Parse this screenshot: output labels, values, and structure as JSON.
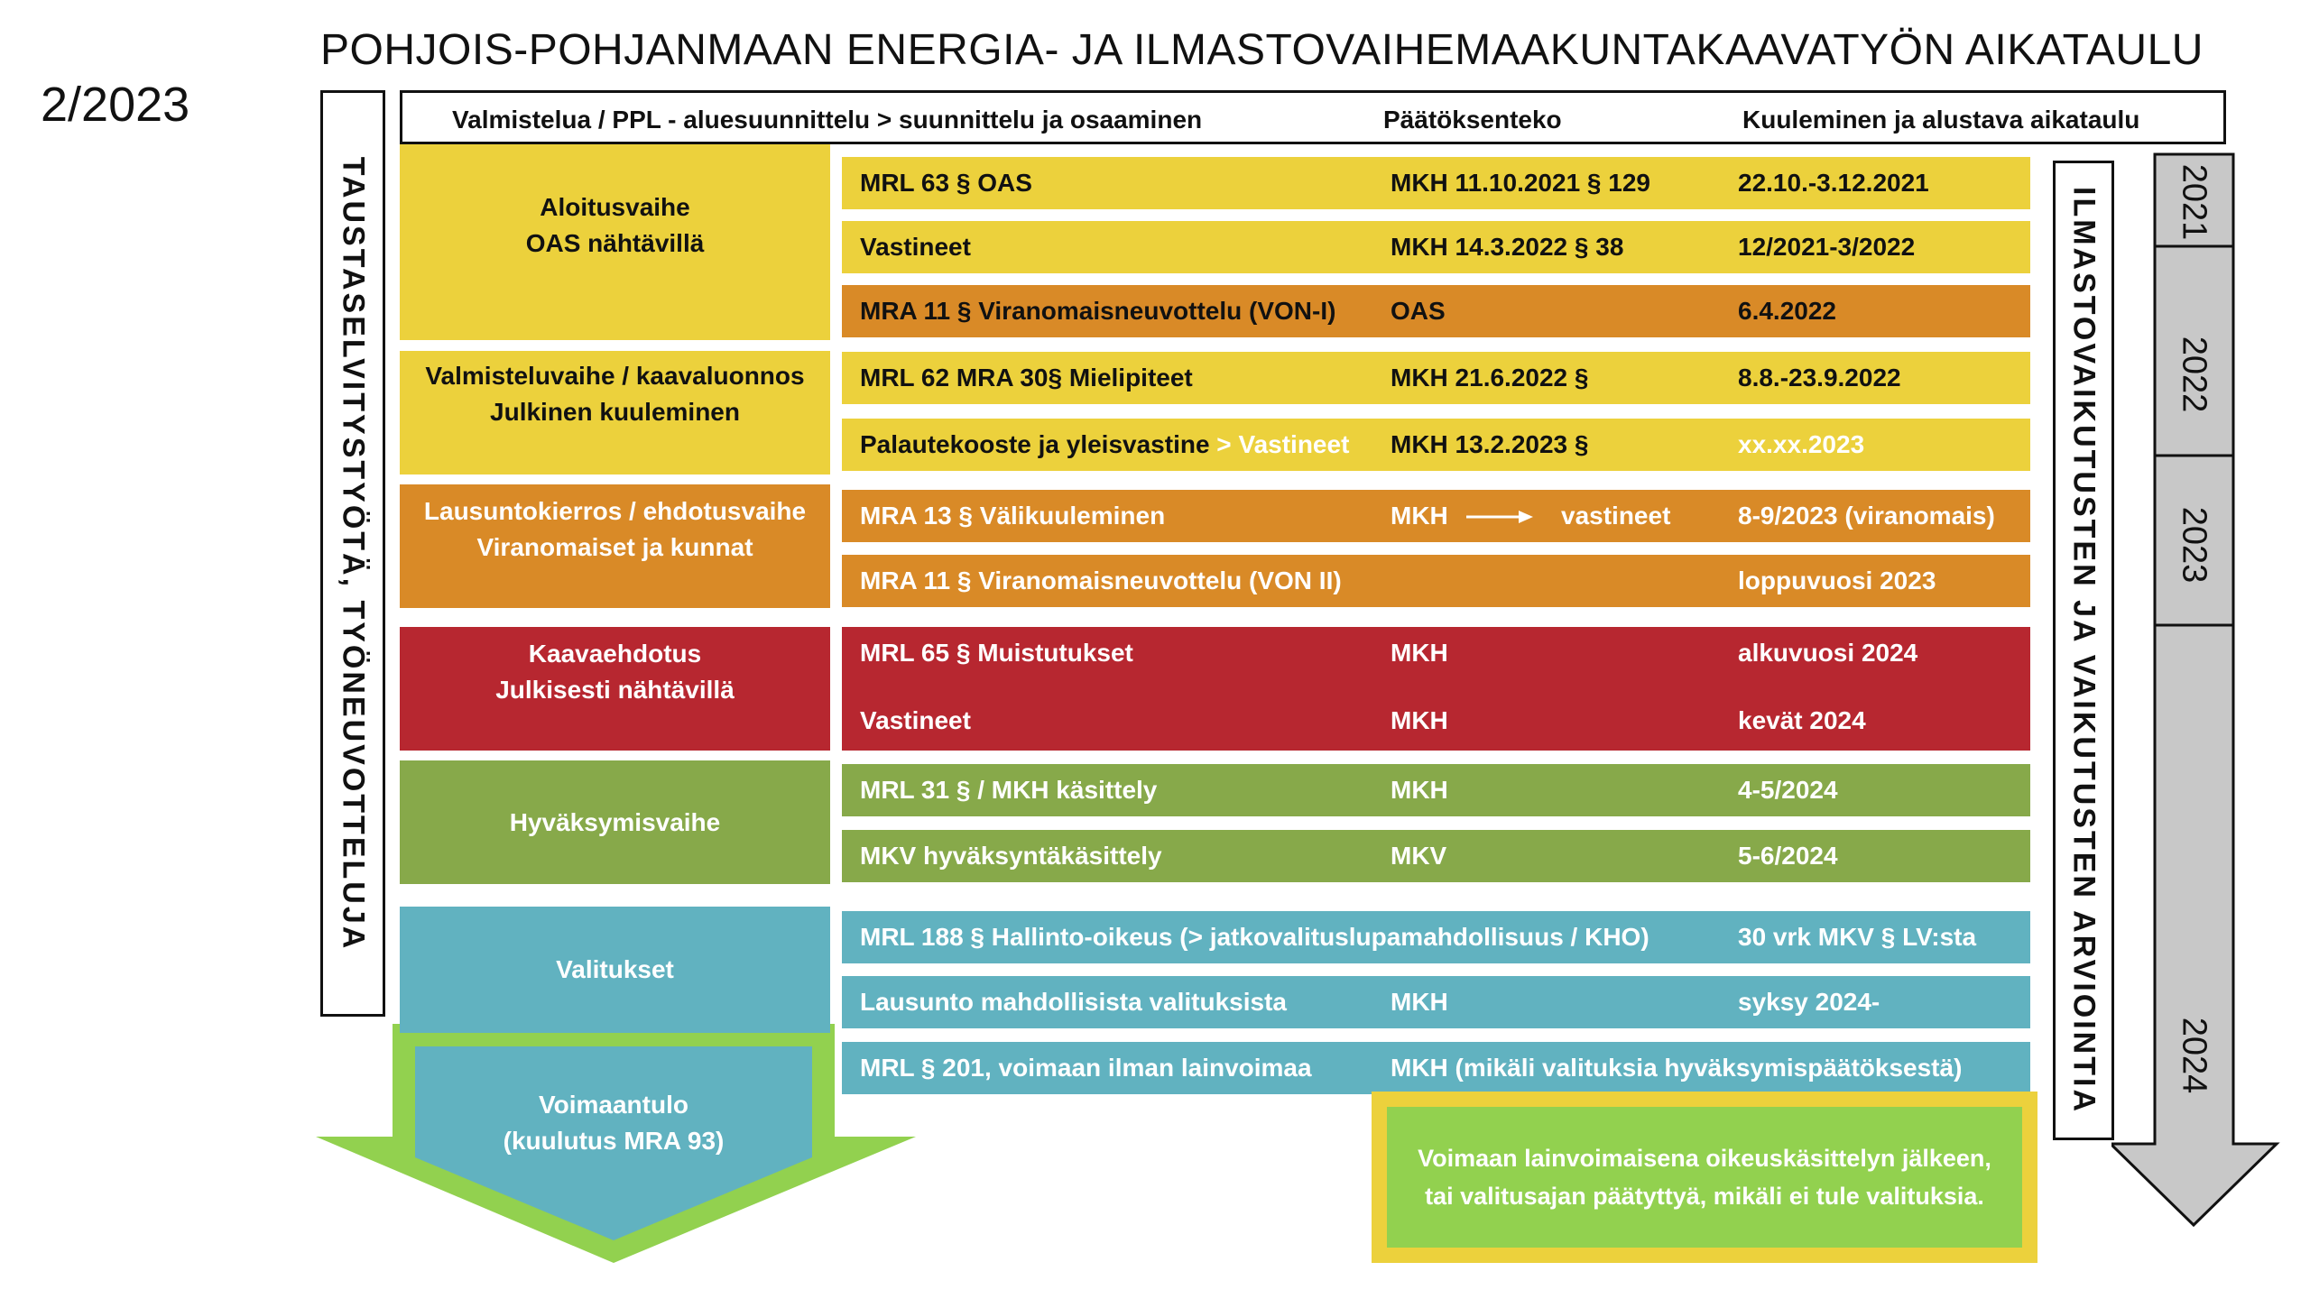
{
  "title": "POHJOIS-POHJANMAAN  ENERGIA- JA ILMASTOVAIHEMAAKUNTAKAAVATYÖN AIKATAULU",
  "date": "2/2023",
  "header": {
    "col1": "Valmistelua / PPL - aluesuunnittelu > suunnittelu ja osaaminen",
    "col2": "Päätöksenteko",
    "col3": "Kuuleminen ja alustava aikataulu"
  },
  "left_vertical": "TAUSTASELVITYSTYÖTÄ, TYÖNEUVOTTELUJA",
  "right_vertical": "ILMASTOVAIKUTUSTEN JA VAIKUTUSTEN ARVIOINTIA",
  "years": [
    "2021",
    "2022",
    "2023",
    "2024"
  ],
  "phases": {
    "aloitus": [
      "Aloitusvaihe",
      "OAS nähtävillä"
    ],
    "valmistelu": [
      "Valmisteluvaihe / kaavaluonnos",
      "Julkinen kuuleminen"
    ],
    "lausunto": [
      "Lausuntokierros / ehdotusvaihe",
      "Viranomaiset ja kunnat"
    ],
    "ehdotus": [
      "Kaavaehdotus",
      "Julkisesti nähtävillä"
    ],
    "hyvaksymis": [
      "Hyväksymisvaihe"
    ],
    "valitukset": [
      "Valitukset"
    ],
    "voimaantulo": [
      "Voimaantulo",
      "(kuulutus MRA 93)"
    ]
  },
  "rows": [
    {
      "a": "MRL 63 § OAS",
      "b": "MKH 11.10.2021 § 129",
      "c": "22.10.-3.12.2021"
    },
    {
      "a": "Vastineet",
      "b": "MKH 14.3.2022 § 38",
      "c": "12/2021-3/2022"
    },
    {
      "a": "MRA 11 § Viranomaisneuvottelu (VON-I)",
      "b": "OAS",
      "c": "6.4.2022"
    },
    {
      "a": "MRL 62 MRA 30§ Mielipiteet",
      "b": "MKH 21.6.2022 §",
      "c": "8.8.-23.9.2022"
    },
    {
      "a": "Palautekooste ja yleisvastine",
      "a_extra": " > Vastineet",
      "b": "MKH 13.2.2023 §",
      "c": "xx.xx.2023"
    },
    {
      "a": "MRA 13 § Välikuuleminen",
      "b": "MKH",
      "b2": "vastineet",
      "c": "8-9/2023 (viranomais)"
    },
    {
      "a": "MRA 11 § Viranomaisneuvottelu (VON II)",
      "b": "",
      "c": "loppuvuosi 2023"
    },
    {
      "a": "MRL 65 § Muistutukset",
      "b": "MKH",
      "c": "alkuvuosi 2024"
    },
    {
      "a": "Vastineet",
      "b": "MKH",
      "c": "kevät 2024"
    },
    {
      "a": "MRL 31 § / MKH käsittely",
      "b": "MKH",
      "c": "4-5/2024"
    },
    {
      "a": "MKV hyväksyntäkäsittely",
      "b": "MKV",
      "c": "5-6/2024"
    },
    {
      "a": "MRL 188 § Hallinto-oikeus (> jatkovalituslupamahdollisuus / KHO)",
      "b": "",
      "c": "30 vrk MKV § LV:sta"
    },
    {
      "a": "Lausunto mahdollisista valituksista",
      "b": "MKH",
      "c": "syksy 2024-"
    },
    {
      "a": "MRL § 201, voimaan ilman lainvoimaa",
      "b": "MKH (mikäli valituksia hyväksymispäätöksestä)",
      "c": ""
    }
  ],
  "note": [
    "Voimaan lainvoimaisena oikeuskäsittelyn jälkeen,",
    "tai valitusajan päätyttyä, mikäli ei tule valituksia."
  ],
  "colors": {
    "yellow": "#ecd13c",
    "orange": "#d98a27",
    "red": "#b72730",
    "green": "#87a94a",
    "teal": "#61b2c0",
    "light_green": "#92d14f",
    "gray": "#c8c8c8"
  }
}
